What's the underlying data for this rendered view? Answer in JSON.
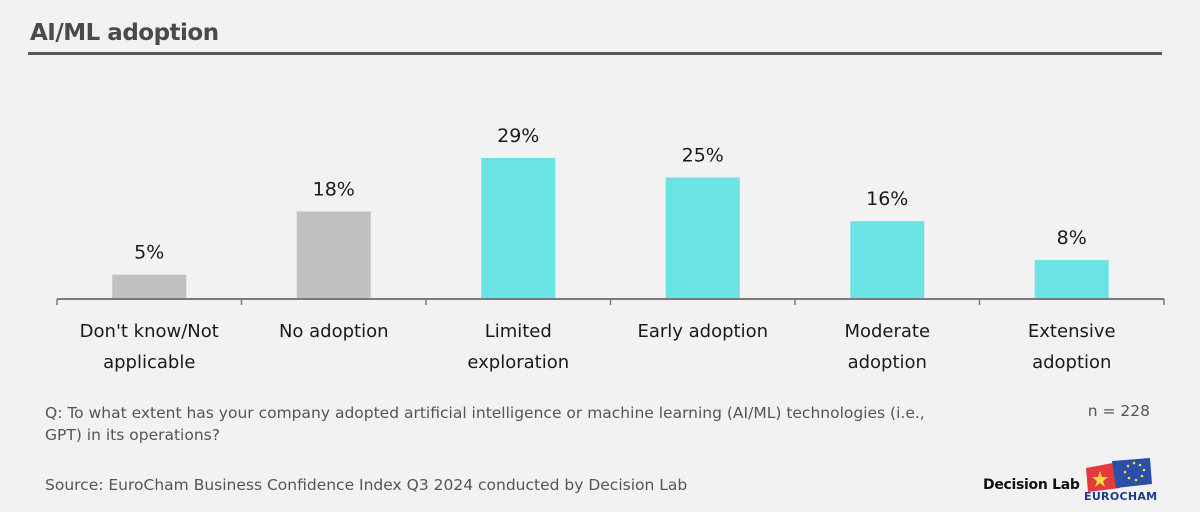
{
  "title": "AI/ML adoption",
  "chart_data": {
    "type": "bar",
    "title": "AI/ML adoption",
    "xlabel": "",
    "ylabel": "",
    "ylim": [
      0,
      30
    ],
    "grid": false,
    "categories": [
      [
        "Don't know/Not",
        "applicable"
      ],
      [
        "No adoption"
      ],
      [
        "Limited",
        "exploration"
      ],
      [
        "Early adoption"
      ],
      [
        "Moderate",
        "adoption"
      ],
      [
        "Extensive",
        "adoption"
      ]
    ],
    "values": [
      5,
      18,
      29,
      25,
      16,
      8
    ],
    "value_labels": [
      "5%",
      "18%",
      "29%",
      "25%",
      "16%",
      "8%"
    ],
    "colors": [
      "#c0c0c2",
      "#c0c0c2",
      "#69e3e4",
      "#69e3e4",
      "#69e3e4",
      "#69e3e4"
    ],
    "unit": "%"
  },
  "footer": {
    "question": "Q: To what extent has your company adopted artificial intelligence or machine learning (AI/ML) technologies (i.e., GPT) in its operations?",
    "n": "n = 228",
    "source": "Source: EuroCham Business Confidence Index Q3 2024 conducted by Decision Lab"
  },
  "logos": {
    "decision_lab": "Decision Lab",
    "eurocham": "EUROCHAM"
  }
}
